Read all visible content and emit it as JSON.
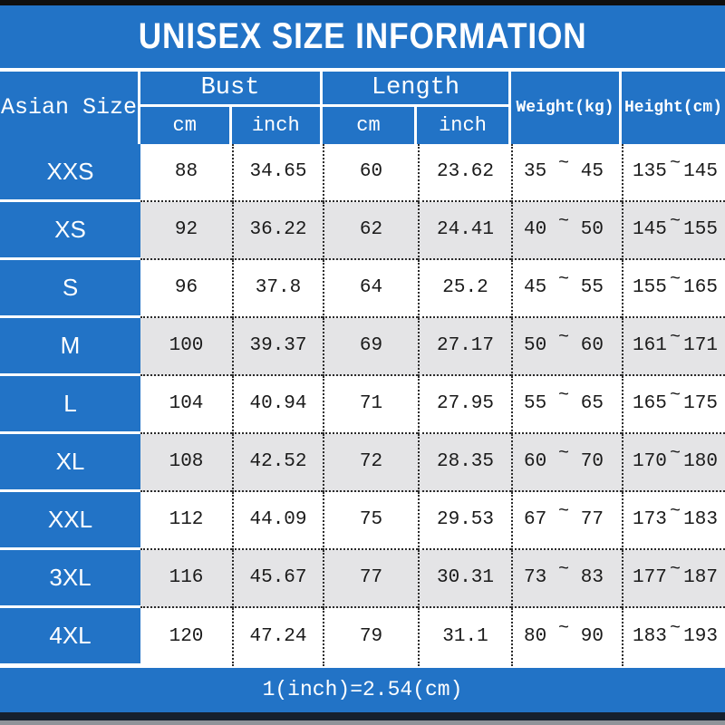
{
  "title": "UNISEX SIZE INFORMATION",
  "header": {
    "size_column": "Asian Size",
    "bust": {
      "label": "Bust",
      "cm": "cm",
      "inch": "inch"
    },
    "length": {
      "label": "Length",
      "cm": "cm",
      "inch": "inch"
    },
    "weight": "Weight(kg)",
    "height": "Height(cm)"
  },
  "tilde": "~",
  "rows": [
    {
      "size": "XXS",
      "bust_cm": "88",
      "bust_inch": "34.65",
      "length_cm": "60",
      "length_inch": "23.62",
      "weight": [
        "35",
        "45"
      ],
      "height": [
        "135",
        "145"
      ]
    },
    {
      "size": "XS",
      "bust_cm": "92",
      "bust_inch": "36.22",
      "length_cm": "62",
      "length_inch": "24.41",
      "weight": [
        "40",
        "50"
      ],
      "height": [
        "145",
        "155"
      ]
    },
    {
      "size": "S",
      "bust_cm": "96",
      "bust_inch": "37.8",
      "length_cm": "64",
      "length_inch": "25.2",
      "weight": [
        "45",
        "55"
      ],
      "height": [
        "155",
        "165"
      ]
    },
    {
      "size": "M",
      "bust_cm": "100",
      "bust_inch": "39.37",
      "length_cm": "69",
      "length_inch": "27.17",
      "weight": [
        "50",
        "60"
      ],
      "height": [
        "161",
        "171"
      ]
    },
    {
      "size": "L",
      "bust_cm": "104",
      "bust_inch": "40.94",
      "length_cm": "71",
      "length_inch": "27.95",
      "weight": [
        "55",
        "65"
      ],
      "height": [
        "165",
        "175"
      ]
    },
    {
      "size": "XL",
      "bust_cm": "108",
      "bust_inch": "42.52",
      "length_cm": "72",
      "length_inch": "28.35",
      "weight": [
        "60",
        "70"
      ],
      "height": [
        "170",
        "180"
      ]
    },
    {
      "size": "XXL",
      "bust_cm": "112",
      "bust_inch": "44.09",
      "length_cm": "75",
      "length_inch": "29.53",
      "weight": [
        "67",
        "77"
      ],
      "height": [
        "173",
        "183"
      ]
    },
    {
      "size": "3XL",
      "bust_cm": "116",
      "bust_inch": "45.67",
      "length_cm": "77",
      "length_inch": "30.31",
      "weight": [
        "73",
        "83"
      ],
      "height": [
        "177",
        "187"
      ]
    },
    {
      "size": "4XL",
      "bust_cm": "120",
      "bust_inch": "47.24",
      "length_cm": "79",
      "length_inch": "31.1",
      "weight": [
        "80",
        "90"
      ],
      "height": [
        "183",
        "193"
      ]
    }
  ],
  "footer_note": "1(inch)=2.54(cm)",
  "colors": {
    "blue": "#2273c6",
    "alt_row": "#e4e4e6",
    "row_bg": "#ffffff",
    "text_dark": "#1a1a1a",
    "top_bar": "#0f0f0f",
    "bottom_bar": "#15202f"
  },
  "chart_data": {
    "type": "table",
    "title": "UNISEX SIZE INFORMATION",
    "columns": [
      "Asian Size",
      "Bust cm",
      "Bust inch",
      "Length cm",
      "Length inch",
      "Weight(kg)",
      "Height(cm)"
    ],
    "rows": [
      [
        "XXS",
        88,
        34.65,
        60,
        23.62,
        "35~45",
        "135~145"
      ],
      [
        "XS",
        92,
        36.22,
        62,
        24.41,
        "40~50",
        "145~155"
      ],
      [
        "S",
        96,
        37.8,
        64,
        25.2,
        "45~55",
        "155~165"
      ],
      [
        "M",
        100,
        39.37,
        69,
        27.17,
        "50~60",
        "161~171"
      ],
      [
        "L",
        104,
        40.94,
        71,
        27.95,
        "55~65",
        "165~175"
      ],
      [
        "XL",
        108,
        42.52,
        72,
        28.35,
        "60~70",
        "170~180"
      ],
      [
        "XXL",
        112,
        44.09,
        75,
        29.53,
        "67~77",
        "173~183"
      ],
      [
        "3XL",
        116,
        45.67,
        77,
        30.31,
        "73~83",
        "177~187"
      ],
      [
        "4XL",
        120,
        47.24,
        79,
        31.1,
        "80~90",
        "183~193"
      ]
    ]
  }
}
